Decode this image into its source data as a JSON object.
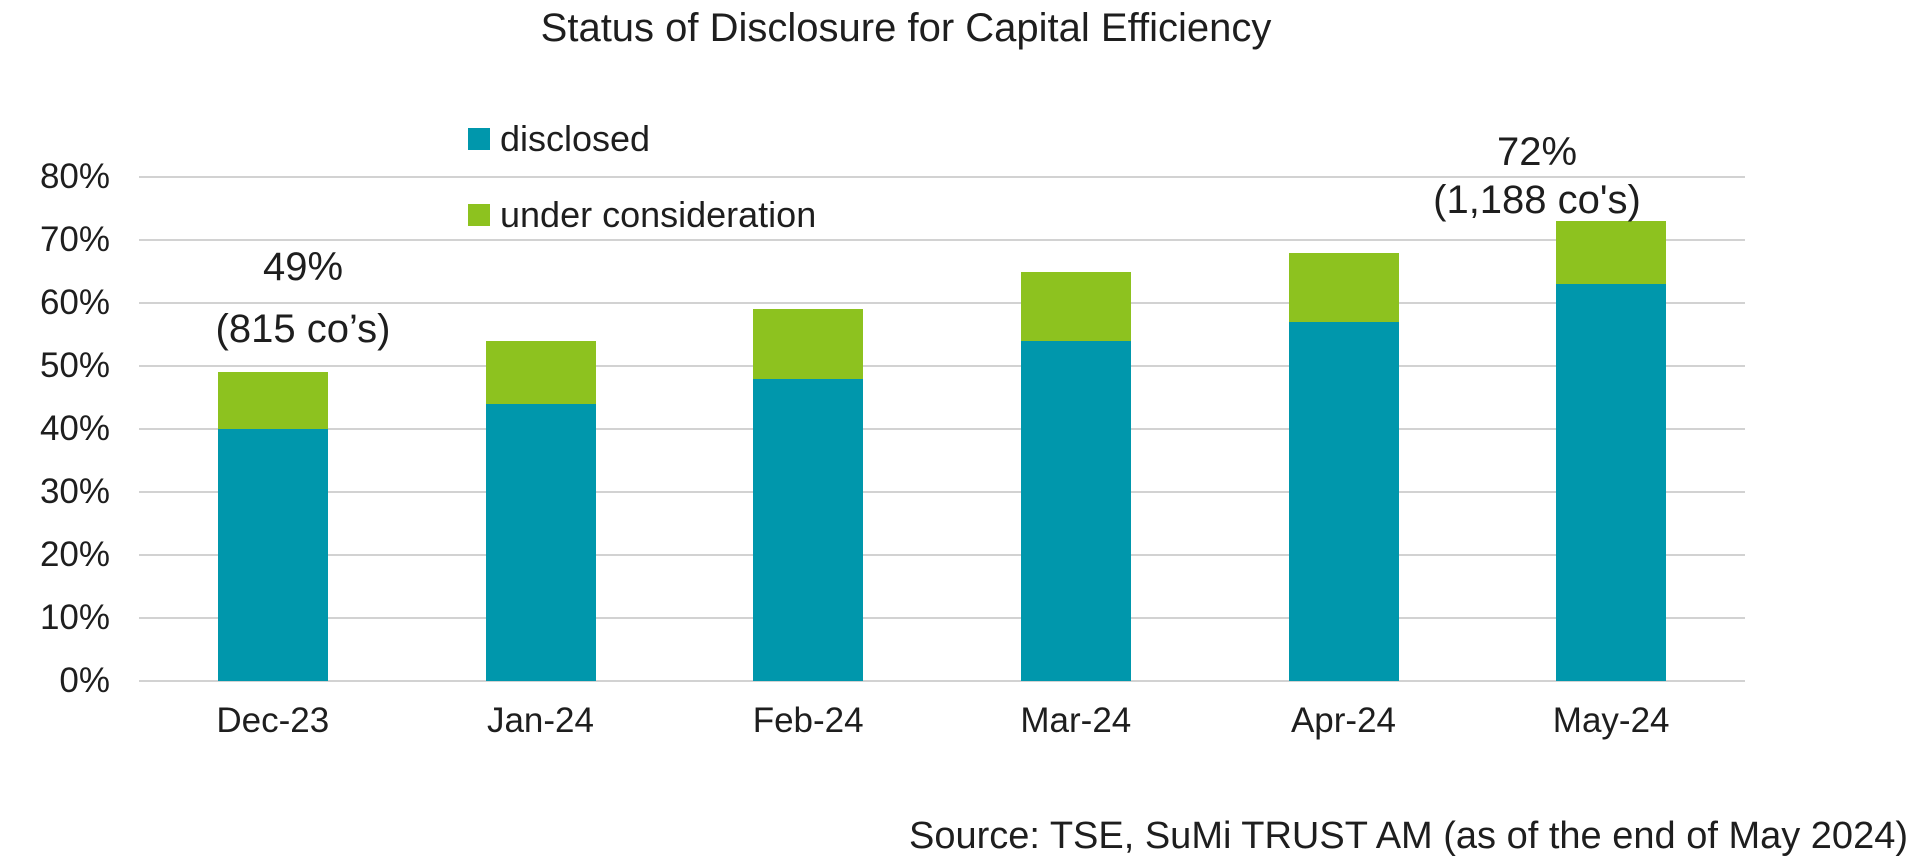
{
  "title": "Status of Disclosure for Capital Efficiency",
  "source_note": "Source: TSE, SuMi TRUST AM (as of the end of May 2024)",
  "chart_data": {
    "type": "bar",
    "stacked": true,
    "title": "Status of Disclosure for Capital Efficiency",
    "categories": [
      "Dec-23",
      "Jan-24",
      "Feb-24",
      "Mar-24",
      "Apr-24",
      "May-24"
    ],
    "series": [
      {
        "name": "disclosed",
        "color": "#0097AC",
        "values": [
          40,
          44,
          48,
          54,
          57,
          63
        ]
      },
      {
        "name": "under consideration",
        "color": "#8DC21F",
        "values": [
          9,
          10,
          11,
          11,
          11,
          10
        ]
      }
    ],
    "stack_totals_pct": [
      49,
      54,
      59,
      65,
      68,
      73
    ],
    "yticks": [
      0,
      10,
      20,
      30,
      40,
      50,
      60,
      70,
      80
    ],
    "ytick_labels": [
      "0%",
      "10%",
      "20%",
      "30%",
      "40%",
      "50%",
      "60%",
      "70%",
      "80%"
    ],
    "ylim": [
      0,
      80
    ],
    "xlabel": "",
    "ylabel": "",
    "grid": true,
    "legend_position": "upper-left-inside",
    "annotations": [
      {
        "category": "Dec-23",
        "line1": "49%",
        "line2": "(815 co’s)"
      },
      {
        "category": "May-24",
        "line1": "72%",
        "line2": "(1,188 co's)"
      }
    ],
    "colors": {
      "grid": "#D2D2D2",
      "text": "#1E1E1E",
      "background": "#FFFFFF"
    }
  }
}
